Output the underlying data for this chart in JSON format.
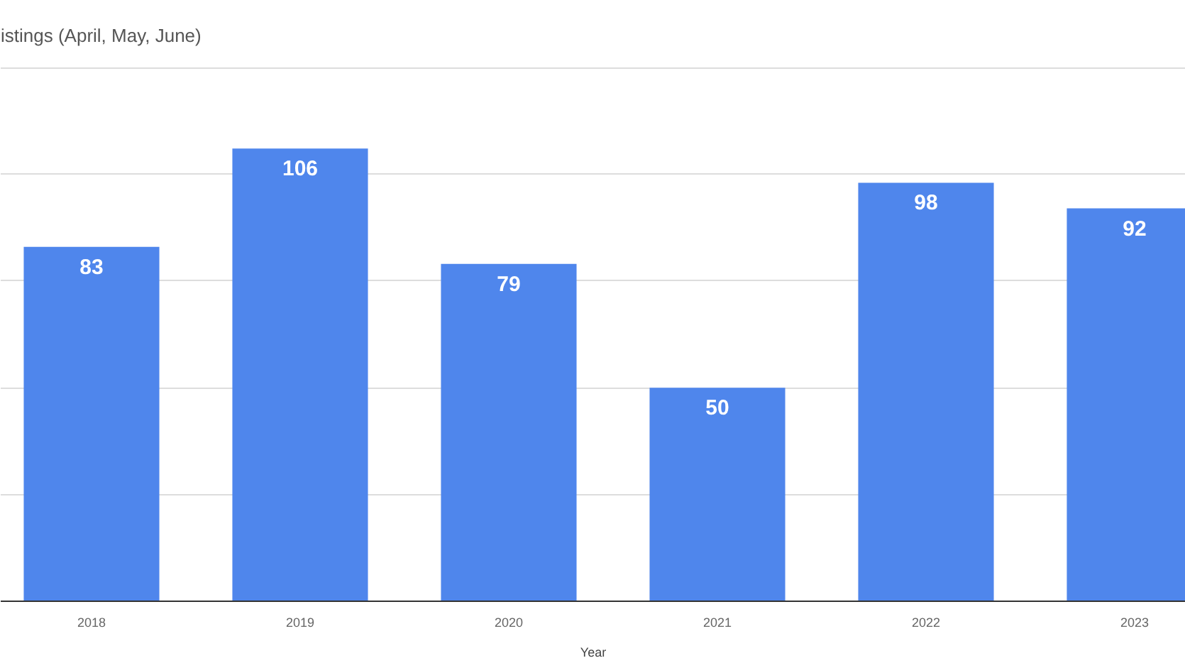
{
  "chart_data": {
    "type": "bar",
    "title": "istings (April, May, June)",
    "xlabel": "Year",
    "categories": [
      "2018",
      "2019",
      "2020",
      "2021",
      "2022",
      "2023"
    ],
    "values": [
      83,
      106,
      79,
      50,
      98,
      92
    ],
    "color": "#4f86ec",
    "ylim": [
      0,
      125
    ],
    "yticks": [
      {
        "value": 0,
        "label": null
      },
      {
        "value": 25,
        "label": null
      },
      {
        "value": 50,
        "label": null
      },
      {
        "value": 75,
        "label": null
      },
      {
        "value": 100,
        "label": null
      }
    ],
    "tick_labels": "x",
    "grid": "y",
    "data_labels": true
  }
}
